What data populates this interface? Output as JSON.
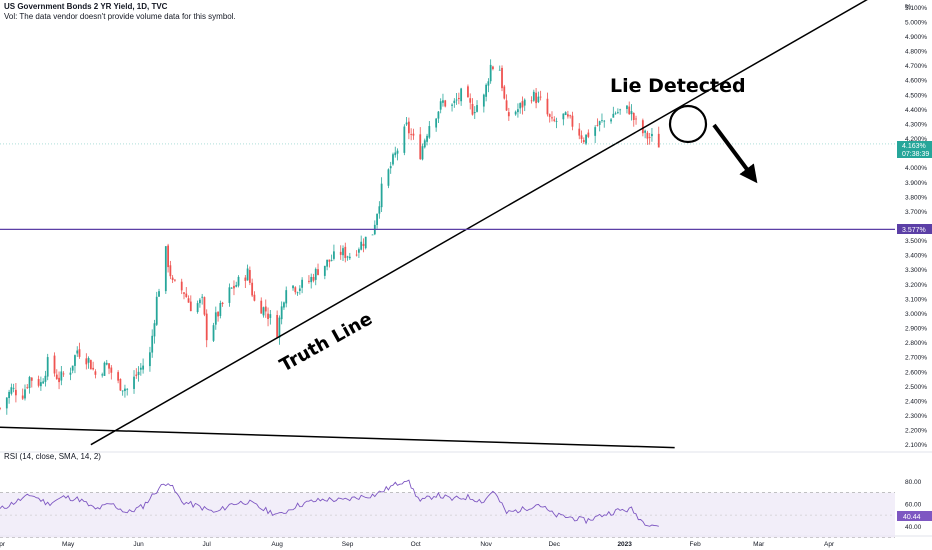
{
  "header": {
    "title": "US Government Bonds 2 YR Yield, 1D, TVC",
    "vol_note": "Vol: The data vendor doesn't provide volume data for this symbol."
  },
  "colors": {
    "up": "#26a69a",
    "down": "#ef5350",
    "hline": "#5b3fa6",
    "rsi_line": "#7e57c2",
    "rsi_band": "#ede7f6",
    "price_badge": "#26a69a",
    "rsi_badge": "#7e57c2"
  },
  "annotations": {
    "lie_detected": "Lie Detected",
    "truth_line": "Truth Line"
  },
  "price_badge": {
    "value": "4.163%",
    "time": "07:38:39"
  },
  "hline_badge": "3.577%",
  "rsi": {
    "label": "RSI (14, close, SMA, 14, 2)",
    "value_badge": "40.44",
    "axis_ticks": [
      "80.00",
      "60.00",
      "40.00"
    ]
  },
  "chart_data": {
    "type": "candlestick",
    "title": "US Government Bonds 2 YR Yield, 1D, TVC",
    "y_unit": "%",
    "ylim": [
      2.05,
      5.15
    ],
    "y_ticks": [
      "5.100%",
      "5.000%",
      "4.900%",
      "4.800%",
      "4.700%",
      "4.600%",
      "4.500%",
      "4.400%",
      "4.300%",
      "4.200%",
      "4.100%",
      "4.000%",
      "3.900%",
      "3.800%",
      "3.700%",
      "3.600%",
      "3.500%",
      "3.400%",
      "3.300%",
      "3.200%",
      "3.100%",
      "3.000%",
      "2.900%",
      "2.800%",
      "2.700%",
      "2.600%",
      "2.500%",
      "2.400%",
      "2.300%",
      "2.200%",
      "2.100%"
    ],
    "x_ticks": [
      "Apr",
      "May",
      "Jun",
      "Jul",
      "Aug",
      "Sep",
      "Oct",
      "Nov",
      "Dec",
      "2023",
      "Feb",
      "Mar",
      "Apr"
    ],
    "x_start": "2022-04-01",
    "x_end": "2023-04-30",
    "last_date": "2023-01-16",
    "close_path": [
      [
        "2022-04-01",
        2.35
      ],
      [
        "2022-04-06",
        2.48
      ],
      [
        "2022-04-11",
        2.45
      ],
      [
        "2022-04-14",
        2.56
      ],
      [
        "2022-04-19",
        2.52
      ],
      [
        "2022-04-22",
        2.66
      ],
      [
        "2022-04-27",
        2.55
      ],
      [
        "2022-05-02",
        2.62
      ],
      [
        "2022-05-05",
        2.75
      ],
      [
        "2022-05-10",
        2.68
      ],
      [
        "2022-05-13",
        2.58
      ],
      [
        "2022-05-18",
        2.65
      ],
      [
        "2022-05-23",
        2.52
      ],
      [
        "2022-05-27",
        2.48
      ],
      [
        "2022-06-01",
        2.6
      ],
      [
        "2022-06-06",
        2.72
      ],
      [
        "2022-06-09",
        3.1
      ],
      [
        "2022-06-13",
        3.42
      ],
      [
        "2022-06-16",
        3.2
      ],
      [
        "2022-06-21",
        3.15
      ],
      [
        "2022-06-24",
        3.05
      ],
      [
        "2022-06-29",
        3.08
      ],
      [
        "2022-07-01",
        2.85
      ],
      [
        "2022-07-06",
        3.0
      ],
      [
        "2022-07-11",
        3.15
      ],
      [
        "2022-07-14",
        3.2
      ],
      [
        "2022-07-19",
        3.28
      ],
      [
        "2022-07-22",
        3.08
      ],
      [
        "2022-07-27",
        3.02
      ],
      [
        "2022-08-01",
        2.88
      ],
      [
        "2022-08-05",
        3.2
      ],
      [
        "2022-08-10",
        3.18
      ],
      [
        "2022-08-15",
        3.22
      ],
      [
        "2022-08-19",
        3.3
      ],
      [
        "2022-08-24",
        3.36
      ],
      [
        "2022-08-29",
        3.42
      ],
      [
        "2022-09-02",
        3.4
      ],
      [
        "2022-09-07",
        3.48
      ],
      [
        "2022-09-12",
        3.56
      ],
      [
        "2022-09-16",
        3.85
      ],
      [
        "2022-09-21",
        4.05
      ],
      [
        "2022-09-27",
        4.28
      ],
      [
        "2022-10-03",
        4.1
      ],
      [
        "2022-10-07",
        4.3
      ],
      [
        "2022-10-13",
        4.45
      ],
      [
        "2022-10-17",
        4.42
      ],
      [
        "2022-10-21",
        4.5
      ],
      [
        "2022-10-26",
        4.4
      ],
      [
        "2022-10-31",
        4.48
      ],
      [
        "2022-11-03",
        4.7
      ],
      [
        "2022-11-07",
        4.68
      ],
      [
        "2022-11-10",
        4.35
      ],
      [
        "2022-11-15",
        4.4
      ],
      [
        "2022-11-21",
        4.5
      ],
      [
        "2022-11-25",
        4.45
      ],
      [
        "2022-11-30",
        4.3
      ],
      [
        "2022-12-05",
        4.35
      ],
      [
        "2022-12-09",
        4.3
      ],
      [
        "2022-12-14",
        4.2
      ],
      [
        "2022-12-19",
        4.28
      ],
      [
        "2022-12-23",
        4.32
      ],
      [
        "2022-12-28",
        4.38
      ],
      [
        "2023-01-03",
        4.4
      ],
      [
        "2023-01-06",
        4.3
      ],
      [
        "2023-01-10",
        4.22
      ],
      [
        "2023-01-13",
        4.2
      ],
      [
        "2023-01-16",
        4.163
      ]
    ],
    "series": [
      {
        "name": "Truth Line",
        "type": "trendline",
        "points": [
          [
            "2022-05-11",
            2.1
          ],
          [
            "2023-02-07",
            4.53
          ]
        ]
      },
      {
        "name": "",
        "type": "trendline",
        "points": [
          [
            "2022-04-01",
            2.22
          ],
          [
            "2023-01-23",
            2.08
          ]
        ]
      },
      {
        "name": "",
        "type": "horizontal_line",
        "value": 3.577
      }
    ],
    "rsi_ylim": [
      35,
      90
    ],
    "rsi_bands": [
      30,
      70
    ],
    "rsi_path": [
      [
        "2022-04-01",
        55
      ],
      [
        "2022-04-08",
        62
      ],
      [
        "2022-04-15",
        68
      ],
      [
        "2022-04-22",
        60
      ],
      [
        "2022-04-29",
        66
      ],
      [
        "2022-05-06",
        64
      ],
      [
        "2022-05-13",
        55
      ],
      [
        "2022-05-20",
        60
      ],
      [
        "2022-05-27",
        52
      ],
      [
        "2022-06-03",
        58
      ],
      [
        "2022-06-10",
        74
      ],
      [
        "2022-06-14",
        80
      ],
      [
        "2022-06-20",
        62
      ],
      [
        "2022-06-27",
        58
      ],
      [
        "2022-07-05",
        52
      ],
      [
        "2022-07-12",
        60
      ],
      [
        "2022-07-19",
        62
      ],
      [
        "2022-07-26",
        55
      ],
      [
        "2022-08-02",
        50
      ],
      [
        "2022-08-09",
        58
      ],
      [
        "2022-08-16",
        62
      ],
      [
        "2022-08-23",
        64
      ],
      [
        "2022-08-30",
        63
      ],
      [
        "2022-09-06",
        66
      ],
      [
        "2022-09-13",
        68
      ],
      [
        "2022-09-20",
        75
      ],
      [
        "2022-09-27",
        82
      ],
      [
        "2022-10-03",
        62
      ],
      [
        "2022-10-10",
        68
      ],
      [
        "2022-10-17",
        64
      ],
      [
        "2022-10-24",
        66
      ],
      [
        "2022-10-31",
        62
      ],
      [
        "2022-11-04",
        72
      ],
      [
        "2022-11-10",
        52
      ],
      [
        "2022-11-17",
        55
      ],
      [
        "2022-11-24",
        60
      ],
      [
        "2022-12-01",
        50
      ],
      [
        "2022-12-08",
        48
      ],
      [
        "2022-12-15",
        45
      ],
      [
        "2022-12-22",
        50
      ],
      [
        "2022-12-29",
        54
      ],
      [
        "2023-01-04",
        55
      ],
      [
        "2023-01-09",
        44
      ],
      [
        "2023-01-16",
        40.44
      ]
    ]
  }
}
